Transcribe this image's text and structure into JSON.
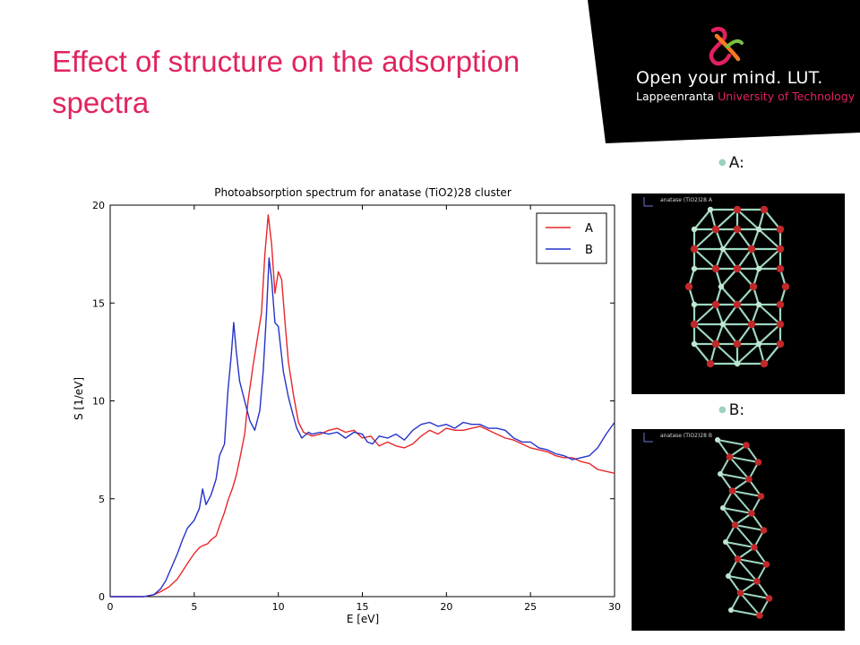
{
  "slide": {
    "title": "Effect of structure on the adsorption spectra"
  },
  "logo": {
    "main_text": "Open your mind. LUT.",
    "sub_text_1": "Lappeenranta ",
    "sub_text_2": "University of Technology",
    "colors": {
      "banner": "#000000",
      "accent_red": "#e3205f",
      "accent_orange": "#f47b20",
      "accent_green": "#7ac143"
    }
  },
  "panels": {
    "a": {
      "bullet": "A:",
      "caption": "anatase (TiO2)28 A"
    },
    "b": {
      "bullet": "B:",
      "caption": "anatase (TiO2)28 B"
    }
  },
  "chart_data": {
    "type": "line",
    "title": "Photoabsorption spectrum for anatase (TiO2)28 cluster",
    "xlabel": "E [eV]",
    "ylabel": "S [1/eV]",
    "xlim": [
      0,
      30
    ],
    "ylim": [
      0,
      20
    ],
    "xticks": [
      0,
      5,
      10,
      15,
      20,
      25,
      30
    ],
    "yticks": [
      0,
      5,
      10,
      15,
      20
    ],
    "grid": false,
    "legend_position": "top-right",
    "series": [
      {
        "name": "A",
        "color": "#e8262a",
        "points": [
          [
            0,
            0
          ],
          [
            2,
            0
          ],
          [
            2.6,
            0.1
          ],
          [
            3,
            0.25
          ],
          [
            3.5,
            0.5
          ],
          [
            4,
            0.9
          ],
          [
            4.3,
            1.3
          ],
          [
            4.6,
            1.7
          ],
          [
            5,
            2.2
          ],
          [
            5.3,
            2.5
          ],
          [
            5.5,
            2.6
          ],
          [
            5.8,
            2.7
          ],
          [
            6,
            2.9
          ],
          [
            6.3,
            3.1
          ],
          [
            6.5,
            3.6
          ],
          [
            6.8,
            4.3
          ],
          [
            7,
            4.9
          ],
          [
            7.3,
            5.6
          ],
          [
            7.5,
            6.2
          ],
          [
            7.7,
            7.0
          ],
          [
            8,
            8.3
          ],
          [
            8.2,
            10.0
          ],
          [
            8.5,
            11.8
          ],
          [
            8.7,
            12.9
          ],
          [
            9,
            14.5
          ],
          [
            9.2,
            17.5
          ],
          [
            9.4,
            19.5
          ],
          [
            9.6,
            18.0
          ],
          [
            9.8,
            15.5
          ],
          [
            10,
            16.6
          ],
          [
            10.2,
            16.2
          ],
          [
            10.4,
            14.0
          ],
          [
            10.6,
            12.0
          ],
          [
            10.9,
            10.3
          ],
          [
            11.2,
            8.9
          ],
          [
            11.5,
            8.4
          ],
          [
            12,
            8.2
          ],
          [
            12.5,
            8.3
          ],
          [
            13,
            8.5
          ],
          [
            13.5,
            8.6
          ],
          [
            14,
            8.4
          ],
          [
            14.5,
            8.5
          ],
          [
            15,
            8.1
          ],
          [
            15.5,
            8.2
          ],
          [
            16,
            7.7
          ],
          [
            16.5,
            7.9
          ],
          [
            17,
            7.7
          ],
          [
            17.5,
            7.6
          ],
          [
            18,
            7.8
          ],
          [
            18.5,
            8.2
          ],
          [
            19,
            8.5
          ],
          [
            19.5,
            8.3
          ],
          [
            20,
            8.6
          ],
          [
            20.5,
            8.5
          ],
          [
            21,
            8.5
          ],
          [
            21.5,
            8.6
          ],
          [
            22,
            8.7
          ],
          [
            22.5,
            8.5
          ],
          [
            23,
            8.3
          ],
          [
            23.5,
            8.1
          ],
          [
            24,
            8.0
          ],
          [
            24.5,
            7.8
          ],
          [
            25,
            7.6
          ],
          [
            25.5,
            7.5
          ],
          [
            26,
            7.4
          ],
          [
            26.5,
            7.2
          ],
          [
            27,
            7.1
          ],
          [
            27.5,
            7.1
          ],
          [
            28,
            6.9
          ],
          [
            28.5,
            6.8
          ],
          [
            29,
            6.5
          ],
          [
            29.5,
            6.4
          ],
          [
            30,
            6.3
          ]
        ]
      },
      {
        "name": "B",
        "color": "#2433c8",
        "points": [
          [
            0,
            0
          ],
          [
            2,
            0
          ],
          [
            2.6,
            0.1
          ],
          [
            3,
            0.4
          ],
          [
            3.3,
            0.8
          ],
          [
            3.6,
            1.4
          ],
          [
            4,
            2.2
          ],
          [
            4.3,
            2.9
          ],
          [
            4.6,
            3.5
          ],
          [
            5,
            3.9
          ],
          [
            5.3,
            4.5
          ],
          [
            5.5,
            5.5
          ],
          [
            5.7,
            4.7
          ],
          [
            6,
            5.2
          ],
          [
            6.3,
            6.0
          ],
          [
            6.5,
            7.2
          ],
          [
            6.8,
            7.8
          ],
          [
            7,
            10.5
          ],
          [
            7.2,
            12.3
          ],
          [
            7.35,
            14.0
          ],
          [
            7.5,
            12.5
          ],
          [
            7.7,
            11.0
          ],
          [
            8,
            10.0
          ],
          [
            8.3,
            9.0
          ],
          [
            8.6,
            8.5
          ],
          [
            8.9,
            9.5
          ],
          [
            9.1,
            11.5
          ],
          [
            9.3,
            14.5
          ],
          [
            9.45,
            17.3
          ],
          [
            9.6,
            16.2
          ],
          [
            9.8,
            14.0
          ],
          [
            10,
            13.8
          ],
          [
            10.3,
            11.5
          ],
          [
            10.6,
            10.2
          ],
          [
            10.9,
            9.2
          ],
          [
            11.1,
            8.6
          ],
          [
            11.4,
            8.1
          ],
          [
            11.8,
            8.4
          ],
          [
            12,
            8.3
          ],
          [
            12.5,
            8.4
          ],
          [
            13,
            8.3
          ],
          [
            13.5,
            8.4
          ],
          [
            14,
            8.1
          ],
          [
            14.5,
            8.4
          ],
          [
            15,
            8.3
          ],
          [
            15.3,
            7.9
          ],
          [
            15.6,
            7.8
          ],
          [
            16,
            8.2
          ],
          [
            16.5,
            8.1
          ],
          [
            17,
            8.3
          ],
          [
            17.5,
            8.0
          ],
          [
            18,
            8.5
          ],
          [
            18.5,
            8.8
          ],
          [
            19,
            8.9
          ],
          [
            19.5,
            8.7
          ],
          [
            20,
            8.8
          ],
          [
            20.5,
            8.6
          ],
          [
            21,
            8.9
          ],
          [
            21.5,
            8.8
          ],
          [
            22,
            8.8
          ],
          [
            22.5,
            8.6
          ],
          [
            23,
            8.6
          ],
          [
            23.5,
            8.5
          ],
          [
            24,
            8.1
          ],
          [
            24.5,
            7.9
          ],
          [
            25,
            7.9
          ],
          [
            25.5,
            7.6
          ],
          [
            26,
            7.5
          ],
          [
            26.5,
            7.3
          ],
          [
            27,
            7.2
          ],
          [
            27.5,
            7.0
          ],
          [
            28,
            7.1
          ],
          [
            28.5,
            7.2
          ],
          [
            29,
            7.6
          ],
          [
            29.5,
            8.3
          ],
          [
            30,
            8.9
          ]
        ]
      }
    ]
  }
}
